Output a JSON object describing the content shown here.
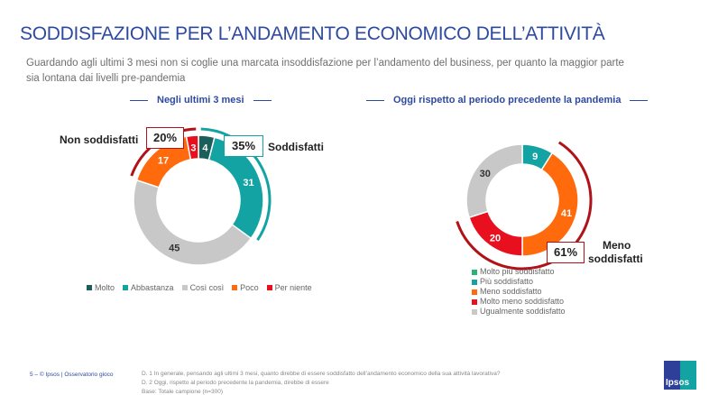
{
  "title": "SODDISFAZIONE PER L’ANDAMENTO ECONOMICO DELL’ATTIVITÀ",
  "subtitle": "Guardando agli ultimi 3 mesi non si coglie una marcata insoddisfazione per l’andamento del business, per quanto la maggior parte sia lontana dai livelli pre-pandemia",
  "colors": {
    "accent": "#2e4a9e",
    "molto": "#1b5e5a",
    "abbastanza": "#14a3a3",
    "cosi_cosi": "#c8c8c8",
    "poco": "#ff6a0d",
    "per_niente": "#e8101e",
    "molto_piu": "#22b573",
    "neg_arc": "#b01218"
  },
  "chart_data": [
    {
      "type": "pie",
      "title": "Negli ultimi 3 mesi",
      "categories": [
        "Molto",
        "Abbastanza",
        "Così così",
        "Poco",
        "Per niente"
      ],
      "values": [
        4,
        31,
        45,
        17,
        3
      ],
      "colors": [
        "#1b5e5a",
        "#14a3a3",
        "#c8c8c8",
        "#ff6a0d",
        "#e8101e"
      ],
      "label_colors": [
        "#ffffff",
        "#ffffff",
        "#333333",
        "#ffffff",
        "#ffffff"
      ],
      "callouts": [
        {
          "value": "35%",
          "label": "Soddisfatti",
          "color": "#14a3a3"
        },
        {
          "value": "20%",
          "label": "Non soddisfatti",
          "color": "#b01218"
        }
      ],
      "legend_position": "bottom"
    },
    {
      "type": "pie",
      "title": "Oggi rispetto al periodo precedente la pandemia",
      "categories": [
        "Molto più soddisfatto",
        "Più soddisfatto",
        "Meno soddisfatto",
        "Molto meno soddisfatto",
        "Ugualmente soddisfatto"
      ],
      "values": [
        0,
        9,
        41,
        20,
        30
      ],
      "colors": [
        "#22b573",
        "#14a3a3",
        "#ff6a0d",
        "#e8101e",
        "#c8c8c8"
      ],
      "label_colors": [
        "#ffffff",
        "#ffffff",
        "#ffffff",
        "#ffffff",
        "#333333"
      ],
      "callouts": [
        {
          "value": "61%",
          "label_line1": "Meno",
          "label_line2": "soddisfatti",
          "color": "#b01218"
        }
      ],
      "legend_position": "bottom"
    }
  ],
  "footer": {
    "page": "5 –",
    "copyright": "© Ipsos",
    "separator": "|",
    "project": "Osservatorio gioco",
    "notes": [
      "D. 1 In generale, pensando agli ultimi 3 mesi, quanto direbbe di essere soddisfatto dell’andamento economico della sua attività lavorativa?",
      "D. 2 Oggi, rispetto al periodo precedente la pandemia, direbbe di essere",
      "Base: Totale campione (n=300)"
    ],
    "logo_text": "Ipsos"
  }
}
